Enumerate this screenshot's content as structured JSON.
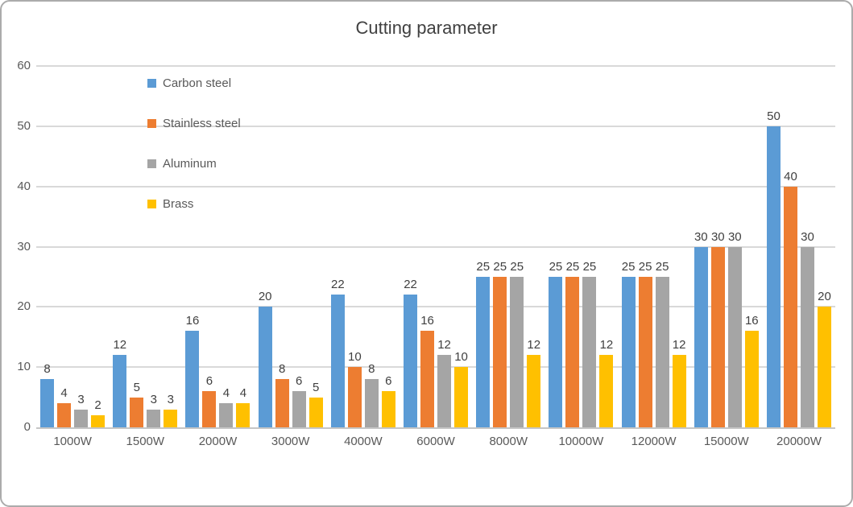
{
  "chart_data": {
    "type": "bar",
    "title": "Cutting parameter",
    "categories": [
      "1000W",
      "1500W",
      "2000W",
      "3000W",
      "4000W",
      "6000W",
      "8000W",
      "10000W",
      "12000W",
      "15000W",
      "20000W"
    ],
    "series": [
      {
        "name": "Carbon steel",
        "color": "#5B9BD5",
        "values": [
          8,
          12,
          16,
          20,
          22,
          22,
          25,
          25,
          25,
          30,
          50
        ]
      },
      {
        "name": "Stainless steel",
        "color": "#ED7D31",
        "values": [
          4,
          5,
          6,
          8,
          10,
          16,
          25,
          25,
          25,
          30,
          40
        ]
      },
      {
        "name": "Aluminum",
        "color": "#A5A5A5",
        "values": [
          3,
          3,
          4,
          6,
          8,
          12,
          25,
          25,
          25,
          30,
          30
        ]
      },
      {
        "name": "Brass",
        "color": "#FFC000",
        "values": [
          2,
          3,
          4,
          5,
          6,
          10,
          12,
          12,
          12,
          16,
          20
        ]
      }
    ],
    "ylim": [
      0,
      60
    ],
    "yticks": [
      0,
      10,
      20,
      30,
      40,
      50,
      60
    ],
    "grid": true,
    "data_labels": true,
    "legend_position": "upper-left-vertical",
    "gridline_color": "#D9D9D9",
    "axis_line_color": "#C6C6C6",
    "title_color": "#404040",
    "tick_label_color": "#595959",
    "data_label_color": "#404040"
  }
}
